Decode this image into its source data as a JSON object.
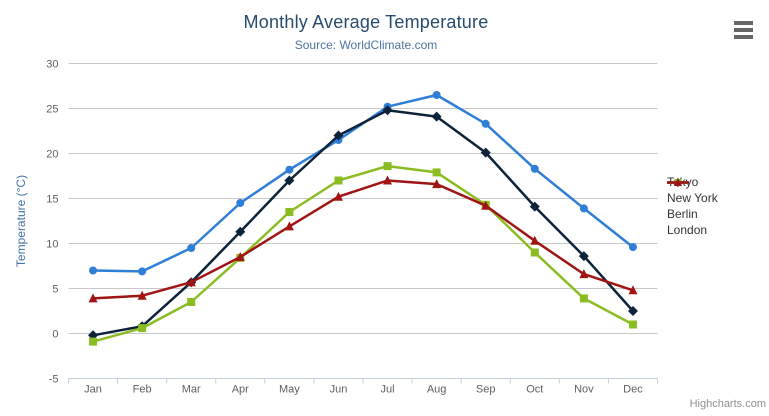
{
  "header": {
    "title": "Monthly Average Temperature",
    "subtitle": "Source: WorldClimate.com"
  },
  "credits": "Highcharts.com",
  "icons": {
    "export_menu": "hamburger-icon"
  },
  "palette": {
    "title_color": "#274b6d",
    "subtitle_color": "#4d759e",
    "axis_title_color": "#4572a7",
    "tick_label_color": "#606060",
    "gridline_color": "#c8c8c8",
    "axis_line_color": "#c0d0e0",
    "legend_text_color": "#333333",
    "credits_color": "#909090"
  },
  "chart_data": {
    "type": "line",
    "title": "Monthly Average Temperature",
    "subtitle": "Source: WorldClimate.com",
    "xlabel": "",
    "ylabel": "Temperature (°C)",
    "ylim": [
      -5,
      30
    ],
    "ytick_step": 5,
    "grid": true,
    "legend_position": "right",
    "categories": [
      "Jan",
      "Feb",
      "Mar",
      "Apr",
      "May",
      "Jun",
      "Jul",
      "Aug",
      "Sep",
      "Oct",
      "Nov",
      "Dec"
    ],
    "series": [
      {
        "name": "Tokyo",
        "color": "#2f7ed8",
        "marker": "circle",
        "values": [
          7.0,
          6.9,
          9.5,
          14.5,
          18.2,
          21.5,
          25.2,
          26.5,
          23.3,
          18.3,
          13.9,
          9.6
        ]
      },
      {
        "name": "New York",
        "color": "#0d233a",
        "marker": "diamond",
        "values": [
          -0.2,
          0.8,
          5.7,
          11.3,
          17.0,
          22.0,
          24.8,
          24.1,
          20.1,
          14.1,
          8.6,
          2.5
        ]
      },
      {
        "name": "Berlin",
        "color": "#8bbc21",
        "marker": "square",
        "values": [
          -0.9,
          0.6,
          3.5,
          8.4,
          13.5,
          17.0,
          18.6,
          17.9,
          14.3,
          9.0,
          3.9,
          1.0
        ]
      },
      {
        "name": "London",
        "color": "#a01414",
        "marker": "triangle",
        "values": [
          3.9,
          4.2,
          5.7,
          8.5,
          11.9,
          15.2,
          17.0,
          16.6,
          14.2,
          10.3,
          6.6,
          4.8
        ]
      }
    ]
  }
}
